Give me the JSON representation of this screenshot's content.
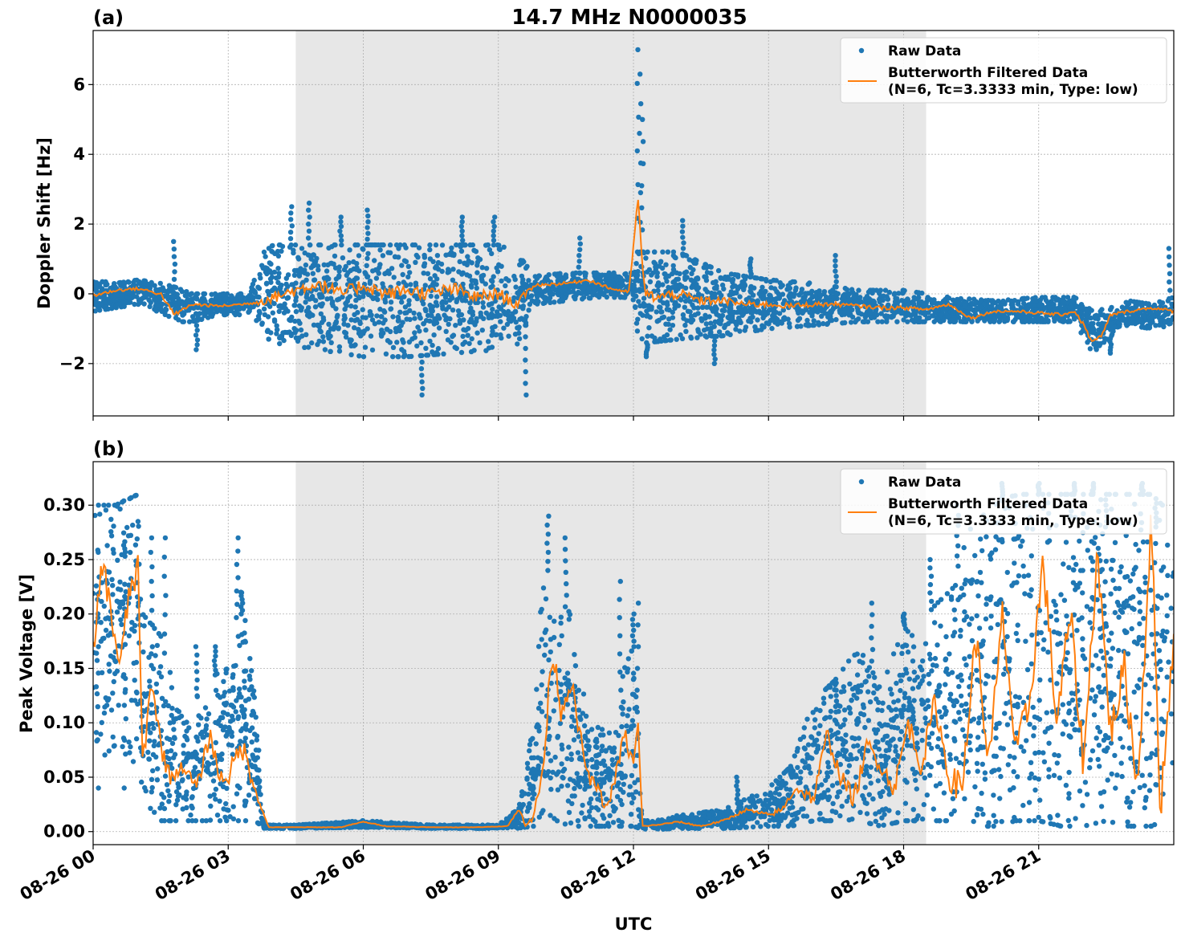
{
  "title": "14.7 MHz N0000035",
  "shading": {
    "start_hour": 4.5,
    "end_hour": 18.5,
    "color": "#e7e7e7"
  },
  "colors": {
    "raw": "#1f77b4",
    "filtered": "#ff7f0e",
    "grid": "#b0b0b0"
  },
  "chart_data": [
    {
      "type": "line",
      "panel_label": "(a)",
      "ylabel": "Doppler Shift [Hz]",
      "ylim": [
        -3.5,
        7.55
      ],
      "yticks": [
        -2,
        0,
        2,
        4,
        6
      ],
      "ytick_labels": [
        "−2",
        "0",
        "2",
        "4",
        "6"
      ],
      "xlim_hours": [
        0,
        24
      ],
      "x_unit": "hours UTC since 08-26 00",
      "legend": {
        "placement": "upper right",
        "raw_label": "Raw Data",
        "filtered_label_1": "Butterworth Filtered Data",
        "filtered_label_2": "(N=6, Tc=3.3333 min, Type: low)"
      },
      "series": [
        {
          "name": "Raw Data",
          "kind": "scatter-band",
          "x": [
            0,
            0.5,
            1.0,
            1.5,
            1.8,
            2.2,
            2.8,
            3.3,
            3.5,
            3.8,
            4.0,
            5.0,
            6.0,
            7.0,
            8.0,
            9.0,
            9.4,
            9.8,
            10.5,
            11.2,
            11.8,
            12.0,
            12.1,
            12.3,
            13.0,
            14.0,
            15.0,
            16.0,
            17.0,
            18.0,
            19.0,
            20.0,
            21.0,
            21.8,
            22.2,
            22.6,
            23.0,
            23.5,
            24.0
          ],
          "low": [
            -0.5,
            -0.4,
            -0.3,
            -0.6,
            -0.8,
            -0.8,
            -0.6,
            -0.6,
            -0.5,
            -1.2,
            -1.4,
            -1.6,
            -1.8,
            -1.8,
            -1.7,
            -1.6,
            -1.5,
            -0.3,
            -0.2,
            -0.1,
            -0.1,
            -0.2,
            -1.2,
            -1.4,
            -1.3,
            -1.2,
            -1.0,
            -0.9,
            -0.8,
            -0.8,
            -0.8,
            -0.8,
            -0.8,
            -0.8,
            -1.7,
            -1.2,
            -0.9,
            -1.0,
            -0.9
          ],
          "high": [
            0.4,
            0.3,
            0.4,
            0.3,
            0.2,
            0.0,
            0.0,
            0.0,
            0.1,
            1.2,
            1.4,
            1.4,
            1.4,
            1.4,
            1.4,
            1.4,
            1.2,
            0.5,
            0.6,
            0.6,
            0.6,
            0.6,
            1.2,
            1.2,
            1.2,
            0.6,
            0.4,
            0.3,
            0.1,
            0.1,
            -0.1,
            -0.2,
            -0.1,
            -0.1,
            -0.5,
            -0.4,
            -0.2,
            -0.3,
            -0.1
          ]
        },
        {
          "name": "Butterworth Filtered Data",
          "x": [
            0,
            0.5,
            1.0,
            1.5,
            1.8,
            2.2,
            2.8,
            3.3,
            3.6,
            4.0,
            4.5,
            5.0,
            5.5,
            6.0,
            6.5,
            7.0,
            7.5,
            8.0,
            8.5,
            9.0,
            9.4,
            9.8,
            10.5,
            11.0,
            11.5,
            11.9,
            12.1,
            12.25,
            12.5,
            13.0,
            13.5,
            14.0,
            14.5,
            15.0,
            15.5,
            16.0,
            16.5,
            17.0,
            17.5,
            18.0,
            18.5,
            19.0,
            19.5,
            20.0,
            20.5,
            21.0,
            21.5,
            21.8,
            22.0,
            22.2,
            22.4,
            22.6,
            23.0,
            23.5,
            24.0
          ],
          "y": [
            -0.05,
            0.1,
            0.15,
            0.0,
            -0.6,
            -0.3,
            -0.35,
            -0.3,
            -0.25,
            -0.1,
            0.1,
            0.3,
            0.0,
            0.25,
            0.0,
            0.1,
            0.0,
            0.15,
            -0.1,
            0.0,
            -0.3,
            0.25,
            0.3,
            0.4,
            0.15,
            0.05,
            2.7,
            0.0,
            -0.1,
            0.0,
            -0.2,
            -0.2,
            -0.3,
            -0.3,
            -0.35,
            -0.3,
            -0.3,
            -0.35,
            -0.4,
            -0.4,
            -0.45,
            -0.3,
            -0.7,
            -0.5,
            -0.5,
            -0.55,
            -0.6,
            -0.5,
            -0.9,
            -1.4,
            -1.2,
            -0.6,
            -0.5,
            -0.4,
            -0.5
          ]
        },
        {
          "name": "Raw Data spikes",
          "kind": "spikes",
          "x": [
            1.8,
            2.3,
            4.4,
            4.8,
            5.5,
            6.1,
            7.3,
            8.2,
            8.9,
            9.6,
            10.8,
            12.1,
            12.15,
            12.2,
            12.3,
            13.1,
            13.8,
            14.6,
            16.5,
            19.1,
            22.6,
            23.9
          ],
          "y": [
            1.5,
            -1.6,
            2.5,
            2.6,
            2.2,
            2.4,
            -2.9,
            2.2,
            2.2,
            -2.9,
            1.6,
            7.0,
            6.3,
            5.0,
            -1.8,
            2.1,
            -2.0,
            1.0,
            1.1,
            -0.5,
            -1.7,
            1.3
          ]
        }
      ]
    },
    {
      "type": "line",
      "panel_label": "(b)",
      "ylabel": "Peak Voltage [V]",
      "xlabel": "UTC",
      "ylim": [
        -0.012,
        0.34
      ],
      "yticks": [
        0.0,
        0.05,
        0.1,
        0.15,
        0.2,
        0.25,
        0.3
      ],
      "ytick_labels": [
        "0.00",
        "0.05",
        "0.10",
        "0.15",
        "0.20",
        "0.25",
        "0.30"
      ],
      "xlim_hours": [
        0,
        24
      ],
      "xticks_hours": [
        0,
        3,
        6,
        9,
        12,
        15,
        18,
        21
      ],
      "xtick_labels": [
        "08-26 00",
        "08-26 03",
        "08-26 06",
        "08-26 09",
        "08-26 12",
        "08-26 15",
        "08-26 18",
        "08-26 21"
      ],
      "legend": {
        "placement": "upper right",
        "raw_label": "Raw Data",
        "filtered_label_1": "Butterworth Filtered Data",
        "filtered_label_2": "(N=6, Tc=3.3333 min, Type: low)"
      },
      "series": [
        {
          "name": "Raw Data",
          "kind": "scatter-band",
          "x": [
            0,
            0.5,
            1.0,
            1.1,
            1.5,
            2.0,
            2.5,
            3.0,
            3.3,
            3.6,
            3.8,
            4.5,
            6.0,
            7.5,
            9.0,
            9.4,
            9.8,
            10.0,
            10.3,
            10.6,
            11.0,
            11.5,
            11.8,
            12.0,
            12.2,
            12.5,
            13.0,
            14.0,
            15.0,
            15.5,
            16.0,
            16.5,
            17.0,
            17.5,
            18.0,
            18.5,
            19.0,
            19.5,
            20.0,
            20.5,
            21.0,
            21.5,
            22.0,
            22.5,
            23.0,
            23.5,
            24.0
          ],
          "low": [
            0.06,
            0.08,
            0.06,
            0.03,
            0.01,
            0.01,
            0.01,
            0.01,
            0.01,
            0.01,
            0.003,
            0.003,
            0.004,
            0.003,
            0.003,
            0.003,
            0.005,
            0.02,
            0.01,
            0.005,
            0.005,
            0.005,
            0.005,
            0.005,
            0.002,
            0.002,
            0.003,
            0.003,
            0.005,
            0.005,
            0.01,
            0.01,
            0.01,
            0.005,
            0.01,
            0.01,
            0.01,
            0.005,
            0.005,
            0.01,
            0.01,
            0.005,
            0.005,
            0.01,
            0.005,
            0.005,
            0.01
          ],
          "high": [
            0.3,
            0.3,
            0.31,
            0.2,
            0.18,
            0.1,
            0.14,
            0.15,
            0.22,
            0.12,
            0.006,
            0.006,
            0.01,
            0.006,
            0.006,
            0.02,
            0.1,
            0.25,
            0.22,
            0.2,
            0.1,
            0.09,
            0.15,
            0.17,
            0.01,
            0.01,
            0.015,
            0.02,
            0.04,
            0.06,
            0.12,
            0.14,
            0.17,
            0.13,
            0.19,
            0.2,
            0.22,
            0.28,
            0.3,
            0.31,
            0.31,
            0.31,
            0.31,
            0.31,
            0.31,
            0.31,
            0.29
          ]
        },
        {
          "name": "Butterworth Filtered Data",
          "x": [
            0,
            0.2,
            0.4,
            0.6,
            0.8,
            1.0,
            1.1,
            1.3,
            1.5,
            1.7,
            2.0,
            2.3,
            2.6,
            2.8,
            3.0,
            3.3,
            3.6,
            3.75,
            3.9,
            4.5,
            5.5,
            6.0,
            6.5,
            7.5,
            8.5,
            9.2,
            9.45,
            9.6,
            9.8,
            10.0,
            10.2,
            10.4,
            10.6,
            10.8,
            11.0,
            11.2,
            11.4,
            11.6,
            11.8,
            12.0,
            12.1,
            12.2,
            12.5,
            13.0,
            13.5,
            14.0,
            14.5,
            15.0,
            15.3,
            15.6,
            16.0,
            16.3,
            16.6,
            16.9,
            17.2,
            17.5,
            17.8,
            18.1,
            18.4,
            18.7,
            19.0,
            19.3,
            19.6,
            19.9,
            20.2,
            20.5,
            20.8,
            21.1,
            21.4,
            21.7,
            22.0,
            22.3,
            22.6,
            22.9,
            23.2,
            23.5,
            23.7,
            24.0
          ],
          "y": [
            0.16,
            0.25,
            0.2,
            0.15,
            0.22,
            0.24,
            0.06,
            0.14,
            0.08,
            0.05,
            0.06,
            0.04,
            0.09,
            0.05,
            0.05,
            0.08,
            0.04,
            0.02,
            0.004,
            0.004,
            0.004,
            0.009,
            0.005,
            0.004,
            0.004,
            0.005,
            0.02,
            0.008,
            0.015,
            0.06,
            0.17,
            0.11,
            0.14,
            0.09,
            0.05,
            0.04,
            0.02,
            0.05,
            0.09,
            0.06,
            0.1,
            0.005,
            0.006,
            0.009,
            0.005,
            0.01,
            0.02,
            0.015,
            0.02,
            0.04,
            0.03,
            0.09,
            0.05,
            0.03,
            0.08,
            0.06,
            0.04,
            0.1,
            0.06,
            0.12,
            0.05,
            0.04,
            0.18,
            0.06,
            0.2,
            0.07,
            0.12,
            0.25,
            0.1,
            0.2,
            0.06,
            0.26,
            0.09,
            0.15,
            0.04,
            0.29,
            0.02,
            0.18
          ]
        },
        {
          "name": "Raw Data spikes",
          "kind": "spikes",
          "x": [
            0.1,
            0.7,
            1.3,
            1.6,
            2.3,
            2.7,
            3.2,
            3.3,
            10.1,
            10.5,
            11.7,
            12.0,
            12.1,
            14.3,
            15.5,
            16.5,
            17.3,
            18.0,
            18.6,
            19.2,
            20.2,
            21.0,
            21.8,
            22.2,
            22.5,
            23.3,
            23.6
          ],
          "y": [
            0.04,
            0.04,
            0.27,
            0.27,
            0.17,
            0.17,
            0.27,
            0.2,
            0.29,
            0.27,
            0.23,
            0.2,
            0.21,
            0.05,
            0.05,
            0.11,
            0.21,
            0.2,
            0.25,
            0.3,
            0.32,
            0.32,
            0.32,
            0.32,
            0.28,
            0.32,
            0.28
          ]
        }
      ]
    }
  ]
}
